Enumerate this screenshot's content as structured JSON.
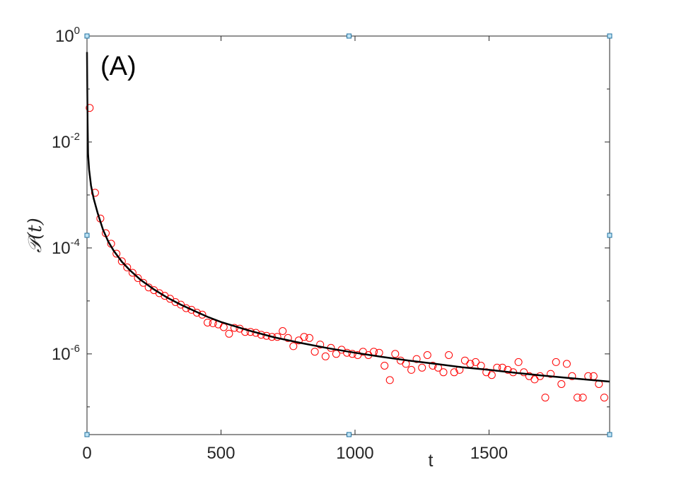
{
  "chart_data": {
    "type": "scatter",
    "panel_label": "(A)",
    "xlabel": "t",
    "ylabel": "𝒫(t)",
    "x_scale": "linear",
    "y_scale": "log",
    "xlim": [
      0,
      1950
    ],
    "ylim": [
      3e-08,
      1
    ],
    "x_ticks": [
      {
        "value": 0,
        "label": "0"
      },
      {
        "value": 500,
        "label": "500"
      },
      {
        "value": 1000,
        "label": "1000"
      },
      {
        "value": 1500,
        "label": "1500"
      }
    ],
    "y_ticks": [
      {
        "value": 1,
        "base": "10",
        "exp": "0"
      },
      {
        "value": 0.01,
        "base": "10",
        "exp": "-2"
      },
      {
        "value": 0.0001,
        "base": "10",
        "exp": "-4"
      },
      {
        "value": 1e-06,
        "base": "10",
        "exp": "-6"
      }
    ],
    "grid": false,
    "legend": "none",
    "series": [
      {
        "kind": "markers",
        "marker": "open-circle",
        "color": "#ff0000",
        "points": [
          [
            10,
            0.044
          ],
          [
            30,
            0.0011
          ],
          [
            50,
            0.00036
          ],
          [
            70,
            0.00019
          ],
          [
            90,
            0.00012
          ],
          [
            110,
            7.8e-05
          ],
          [
            130,
            5.6e-05
          ],
          [
            150,
            4.3e-05
          ],
          [
            170,
            3.4e-05
          ],
          [
            190,
            2.7e-05
          ],
          [
            210,
            2.2e-05
          ],
          [
            230,
            1.8e-05
          ],
          [
            250,
            1.6e-05
          ],
          [
            270,
            1.4e-05
          ],
          [
            290,
            1.25e-05
          ],
          [
            310,
            1.1e-05
          ],
          [
            330,
            9.5e-06
          ],
          [
            350,
            8.5e-06
          ],
          [
            370,
            7.3e-06
          ],
          [
            390,
            6.8e-06
          ],
          [
            410,
            6e-06
          ],
          [
            430,
            5.5e-06
          ],
          [
            450,
            3.9e-06
          ],
          [
            470,
            3.8e-06
          ],
          [
            490,
            3.6e-06
          ],
          [
            510,
            3.2e-06
          ],
          [
            530,
            2.4e-06
          ],
          [
            550,
            3.1e-06
          ],
          [
            570,
            3e-06
          ],
          [
            590,
            2.6e-06
          ],
          [
            610,
            2.6e-06
          ],
          [
            630,
            2.5e-06
          ],
          [
            650,
            2.3e-06
          ],
          [
            670,
            2.2e-06
          ],
          [
            690,
            2.1e-06
          ],
          [
            710,
            2.1e-06
          ],
          [
            730,
            2.7e-06
          ],
          [
            750,
            2e-06
          ],
          [
            770,
            1.4e-06
          ],
          [
            790,
            1.8e-06
          ],
          [
            810,
            2.1e-06
          ],
          [
            830,
            2e-06
          ],
          [
            850,
            1.1e-06
          ],
          [
            870,
            1.5e-06
          ],
          [
            890,
            9e-07
          ],
          [
            910,
            1.3e-06
          ],
          [
            930,
            1e-06
          ],
          [
            950,
            1.2e-06
          ],
          [
            970,
            1.05e-06
          ],
          [
            990,
            1e-06
          ],
          [
            1010,
            9.5e-07
          ],
          [
            1030,
            1.1e-06
          ],
          [
            1050,
            9.5e-07
          ],
          [
            1070,
            1.1e-06
          ],
          [
            1090,
            1.05e-06
          ],
          [
            1110,
            6e-07
          ],
          [
            1130,
            3.2e-07
          ],
          [
            1150,
            1e-06
          ],
          [
            1170,
            7.5e-07
          ],
          [
            1190,
            6.5e-07
          ],
          [
            1210,
            5e-07
          ],
          [
            1230,
            8e-07
          ],
          [
            1250,
            5.5e-07
          ],
          [
            1270,
            9.5e-07
          ],
          [
            1290,
            6e-07
          ],
          [
            1310,
            5.5e-07
          ],
          [
            1330,
            4.5e-07
          ],
          [
            1350,
            9.5e-07
          ],
          [
            1370,
            4.5e-07
          ],
          [
            1390,
            5e-07
          ],
          [
            1410,
            7.5e-07
          ],
          [
            1430,
            6.5e-07
          ],
          [
            1450,
            7e-07
          ],
          [
            1470,
            6e-07
          ],
          [
            1490,
            4.5e-07
          ],
          [
            1510,
            4e-07
          ],
          [
            1530,
            5.5e-07
          ],
          [
            1550,
            5.5e-07
          ],
          [
            1570,
            5e-07
          ],
          [
            1590,
            4.5e-07
          ],
          [
            1610,
            7e-07
          ],
          [
            1630,
            4.5e-07
          ],
          [
            1650,
            3.8e-07
          ],
          [
            1670,
            3.3e-07
          ],
          [
            1690,
            3.8e-07
          ],
          [
            1710,
            1.5e-07
          ],
          [
            1730,
            4.2e-07
          ],
          [
            1750,
            7e-07
          ],
          [
            1770,
            2.7e-07
          ],
          [
            1790,
            6.5e-07
          ],
          [
            1810,
            3.8e-07
          ],
          [
            1830,
            1.5e-07
          ],
          [
            1850,
            1.5e-07
          ],
          [
            1870,
            3.8e-07
          ],
          [
            1890,
            3.8e-07
          ],
          [
            1910,
            2.7e-07
          ],
          [
            1930,
            1.5e-07
          ]
        ]
      },
      {
        "kind": "line",
        "color": "#000000",
        "points": [
          [
            0,
            0.5
          ],
          [
            1,
            0.1
          ],
          [
            2,
            0.025
          ],
          [
            4,
            0.006
          ],
          [
            8,
            0.003
          ],
          [
            15,
            0.0015
          ],
          [
            25,
            0.00085
          ],
          [
            40,
            0.00045
          ],
          [
            60,
            0.00022
          ],
          [
            80,
            0.00013
          ],
          [
            100,
            8.8e-05
          ],
          [
            130,
            5.5e-05
          ],
          [
            160,
            3.8e-05
          ],
          [
            200,
            2.5e-05
          ],
          [
            250,
            1.65e-05
          ],
          [
            300,
            1.15e-05
          ],
          [
            350,
            8.5e-06
          ],
          [
            400,
            6.5e-06
          ],
          [
            450,
            5e-06
          ],
          [
            500,
            4e-06
          ],
          [
            600,
            2.8e-06
          ],
          [
            700,
            2.05e-06
          ],
          [
            800,
            1.6e-06
          ],
          [
            900,
            1.28e-06
          ],
          [
            1000,
            1.05e-06
          ],
          [
            1100,
            8.8e-07
          ],
          [
            1200,
            7.5e-07
          ],
          [
            1300,
            6.5e-07
          ],
          [
            1400,
            5.6e-07
          ],
          [
            1500,
            5e-07
          ],
          [
            1600,
            4.4e-07
          ],
          [
            1700,
            3.9e-07
          ],
          [
            1800,
            3.5e-07
          ],
          [
            1900,
            3.15e-07
          ],
          [
            1950,
            3e-07
          ]
        ]
      }
    ]
  }
}
